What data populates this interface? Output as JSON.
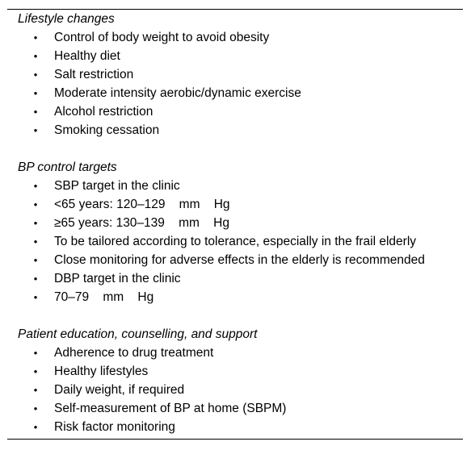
{
  "sections": [
    {
      "title": "Lifestyle changes",
      "items": [
        "Control of body weight to avoid obesity",
        "Healthy diet",
        "Salt restriction",
        "Moderate intensity aerobic/dynamic exercise",
        "Alcohol restriction",
        "Smoking cessation"
      ]
    },
    {
      "title": "BP control targets",
      "items": [
        "SBP target in the clinic",
        "<65 years: 120–129    mm    Hg",
        "≥65 years: 130–139    mm    Hg",
        "To be tailored according to tolerance, especially in the frail elderly",
        "Close monitoring for adverse effects in the elderly is recommended",
        "DBP target in the clinic",
        "70–79    mm    Hg"
      ]
    },
    {
      "title": "Patient education, counselling, and support",
      "items": [
        "Adherence to drug treatment",
        "Healthy lifestyles",
        "Daily weight, if required",
        "Self-measurement of BP at home (SBPM)",
        "Risk factor monitoring"
      ]
    }
  ],
  "bullet_glyph": "•"
}
